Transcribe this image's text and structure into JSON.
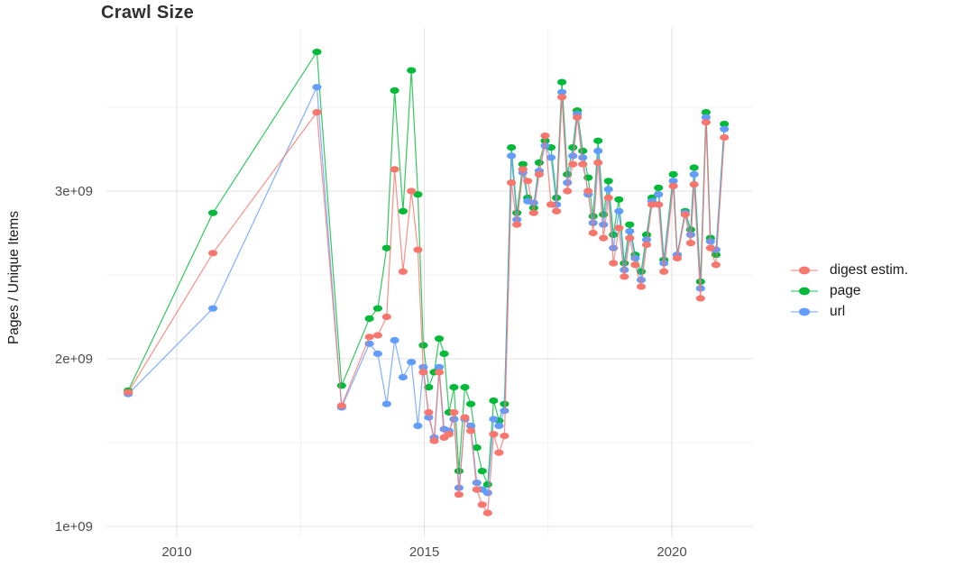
{
  "chart_data": {
    "type": "line",
    "title": "Crawl Size",
    "xlabel": "",
    "ylabel": "Pages / Unique Items",
    "grid": true,
    "legend_position": "right",
    "x_range": [
      2008.6,
      2021.9
    ],
    "y_range": [
      930000000.0,
      3980000000.0
    ],
    "x_ticks": [
      {
        "label": "2010",
        "value": 2010
      },
      {
        "label": "2015",
        "value": 2015
      },
      {
        "label": "2020",
        "value": 2020
      }
    ],
    "y_ticks": [
      {
        "label": "1e+09",
        "value": 1000000000.0
      },
      {
        "label": "2e+09",
        "value": 2000000000.0
      },
      {
        "label": "3e+09",
        "value": 3000000000.0
      }
    ],
    "x_minor_gridlines": [
      2012.5,
      2017.5
    ],
    "y_minor_gridlines": [
      1500000000.0,
      2500000000.0,
      3500000000.0
    ],
    "x": [
      2009.02,
      2010.73,
      2012.83,
      2013.33,
      2013.89,
      2014.06,
      2014.24,
      2014.4,
      2014.57,
      2014.74,
      2014.87,
      2014.98,
      2015.09,
      2015.2,
      2015.3,
      2015.4,
      2015.5,
      2015.6,
      2015.7,
      2015.82,
      2015.94,
      2016.06,
      2016.17,
      2016.28,
      2016.4,
      2016.51,
      2016.62,
      2016.76,
      2016.87,
      2016.99,
      2017.09,
      2017.21,
      2017.32,
      2017.44,
      2017.56,
      2017.67,
      2017.78,
      2017.89,
      2018.0,
      2018.09,
      2018.2,
      2018.31,
      2018.41,
      2018.51,
      2018.62,
      2018.72,
      2018.82,
      2018.93,
      2019.04,
      2019.15,
      2019.26,
      2019.38,
      2019.49,
      2019.6,
      2019.73,
      2019.84,
      2020.03,
      2020.11,
      2020.27,
      2020.38,
      2020.45,
      2020.58,
      2020.69,
      2020.78,
      2020.89,
      2021.06
    ],
    "series": [
      {
        "name": "digest estim.",
        "color": "#F8766D",
        "values": [
          1800000000.0,
          2630000000.0,
          3470000000.0,
          1720000000.0,
          2130000000.0,
          2140000000.0,
          2250000000.0,
          3130000000.0,
          2520000000.0,
          3000000000.0,
          2650000000.0,
          1920000000.0,
          1680000000.0,
          1510000000.0,
          1920000000.0,
          1530000000.0,
          1550000000.0,
          1680000000.0,
          1190000000.0,
          1650000000.0,
          1570000000.0,
          1220000000.0,
          1130000000.0,
          1080000000.0,
          1550000000.0,
          1440000000.0,
          1540000000.0,
          3050000000.0,
          2800000000.0,
          3130000000.0,
          3060000000.0,
          2870000000.0,
          3100000000.0,
          3330000000.0,
          2920000000.0,
          2880000000.0,
          3560000000.0,
          3000000000.0,
          3160000000.0,
          3440000000.0,
          3160000000.0,
          3000000000.0,
          2750000000.0,
          3170000000.0,
          2720000000.0,
          2960000000.0,
          2570000000.0,
          2780000000.0,
          2490000000.0,
          2720000000.0,
          2560000000.0,
          2430000000.0,
          2680000000.0,
          2920000000.0,
          2920000000.0,
          2520000000.0,
          3030000000.0,
          2600000000.0,
          2860000000.0,
          2690000000.0,
          3040000000.0,
          2360000000.0,
          3410000000.0,
          2660000000.0,
          2560000000.0,
          3320000000.0
        ]
      },
      {
        "name": "page",
        "color": "#00BA38",
        "values": [
          1810000000.0,
          2870000000.0,
          3830000000.0,
          1840000000.0,
          2240000000.0,
          2300000000.0,
          2660000000.0,
          3600000000.0,
          2880000000.0,
          3720000000.0,
          2980000000.0,
          2080000000.0,
          1830000000.0,
          1920000000.0,
          2120000000.0,
          2030000000.0,
          1680000000.0,
          1830000000.0,
          1330000000.0,
          1830000000.0,
          1730000000.0,
          1470000000.0,
          1330000000.0,
          1250000000.0,
          1750000000.0,
          1630000000.0,
          1730000000.0,
          3260000000.0,
          2870000000.0,
          3160000000.0,
          2960000000.0,
          2900000000.0,
          3170000000.0,
          3300000000.0,
          3260000000.0,
          2960000000.0,
          3650000000.0,
          3100000000.0,
          3260000000.0,
          3480000000.0,
          3240000000.0,
          3080000000.0,
          2850000000.0,
          3300000000.0,
          2860000000.0,
          3060000000.0,
          2740000000.0,
          2950000000.0,
          2570000000.0,
          2800000000.0,
          2620000000.0,
          2520000000.0,
          2740000000.0,
          2960000000.0,
          3020000000.0,
          2590000000.0,
          3100000000.0,
          2620000000.0,
          2880000000.0,
          2770000000.0,
          3140000000.0,
          2460000000.0,
          3470000000.0,
          2720000000.0,
          2620000000.0,
          3400000000.0
        ]
      },
      {
        "name": "url",
        "color": "#619CFF",
        "values": [
          1790000000.0,
          2300000000.0,
          3620000000.0,
          1710000000.0,
          2090000000.0,
          2030000000.0,
          1730000000.0,
          2110000000.0,
          1890000000.0,
          1980000000.0,
          1600000000.0,
          1950000000.0,
          1650000000.0,
          1530000000.0,
          1950000000.0,
          1580000000.0,
          1570000000.0,
          1640000000.0,
          1230000000.0,
          1640000000.0,
          1600000000.0,
          1260000000.0,
          1220000000.0,
          1200000000.0,
          1640000000.0,
          1600000000.0,
          1690000000.0,
          3210000000.0,
          2830000000.0,
          3110000000.0,
          2940000000.0,
          2930000000.0,
          3120000000.0,
          3270000000.0,
          3200000000.0,
          2920000000.0,
          3590000000.0,
          3050000000.0,
          3210000000.0,
          3460000000.0,
          3200000000.0,
          2980000000.0,
          2810000000.0,
          3240000000.0,
          2800000000.0,
          3010000000.0,
          2660000000.0,
          2880000000.0,
          2530000000.0,
          2760000000.0,
          2600000000.0,
          2470000000.0,
          2710000000.0,
          2940000000.0,
          2980000000.0,
          2570000000.0,
          3060000000.0,
          2620000000.0,
          2870000000.0,
          2740000000.0,
          3100000000.0,
          2420000000.0,
          3440000000.0,
          2700000000.0,
          2650000000.0,
          3370000000.0
        ]
      }
    ],
    "draw_order": [
      1,
      2,
      0
    ],
    "grid_major_color": "#e2e2e2",
    "grid_minor_color": "#ededed"
  },
  "legend": {
    "items": [
      {
        "label": "digest estim."
      },
      {
        "label": "page"
      },
      {
        "label": "url"
      }
    ]
  }
}
